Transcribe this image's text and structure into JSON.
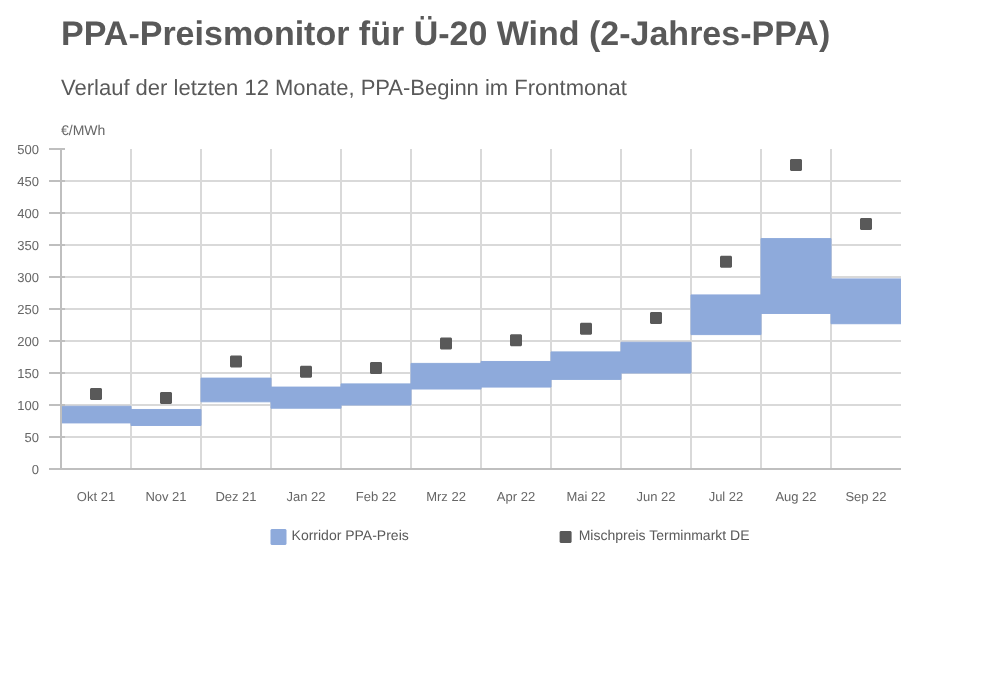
{
  "chart_data": {
    "type": "bar",
    "title": "PPA-Preismonitor für Ü-20 Wind (2-Jahres-PPA)",
    "subtitle": "Verlauf der letzten 12 Monate, PPA-Beginn im Frontmonat",
    "ylabel": "€/MWh",
    "categories": [
      "Okt 21",
      "Nov 21",
      "Dez 21",
      "Jan 22",
      "Feb 22",
      "Mrz 22",
      "Apr 22",
      "Mai 22",
      "Jun 22",
      "Jul 22",
      "Aug 22",
      "Sep 22"
    ],
    "series": [
      {
        "name": "Korridor PPA-Preis",
        "color": "#8eaadb",
        "base": [
          72,
          68,
          105,
          95,
          100,
          125,
          128,
          140,
          150,
          210,
          243,
          227
        ],
        "values": [
          26,
          25,
          37,
          33,
          33,
          40,
          40,
          43,
          48,
          62,
          117,
          70
        ]
      },
      {
        "name": "Mischpreis Terminmarkt DE",
        "type": "scatter",
        "marker": "square",
        "color": "#595959",
        "values": [
          117,
          111,
          168,
          152,
          158,
          196,
          201,
          219,
          236,
          324,
          475,
          383
        ]
      }
    ],
    "ylim": [
      0,
      500
    ],
    "yticks": [
      0,
      50,
      100,
      150,
      200,
      250,
      300,
      350,
      400,
      450,
      500
    ],
    "grid": true,
    "legend": "bottom"
  }
}
